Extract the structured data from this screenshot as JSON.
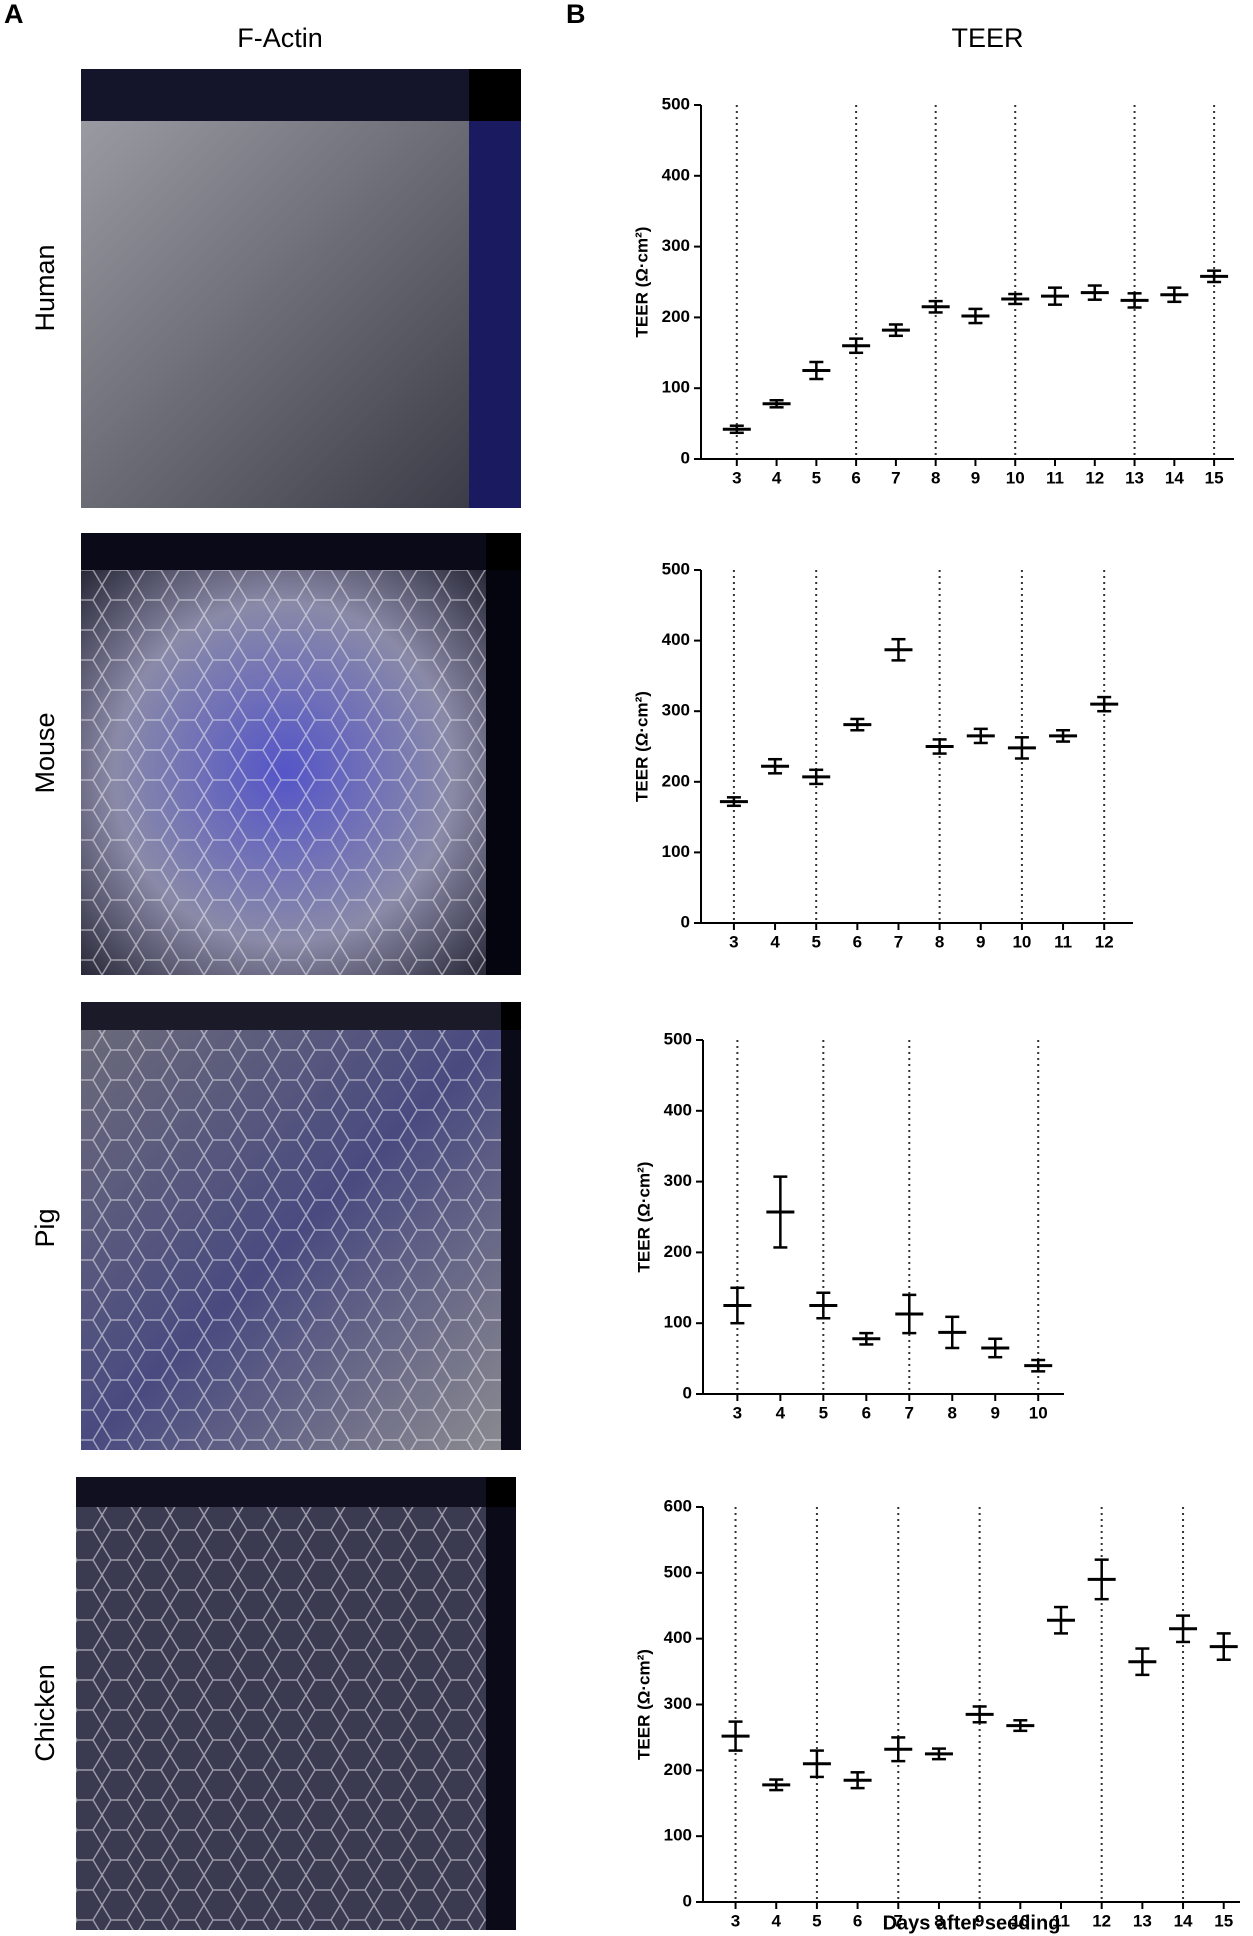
{
  "figure": {
    "panel_labels": [
      "A",
      "B"
    ],
    "image_title": "F-Actin",
    "species": [
      "Human",
      "Mouse",
      "Pig",
      "Chicken"
    ]
  },
  "chart_data": [
    {
      "type": "errorbar",
      "title": "TEER",
      "y_label": "TEER (Ω·cm²)",
      "x": [
        3,
        4,
        5,
        6,
        7,
        8,
        9,
        10,
        11,
        12,
        13,
        14,
        15
      ],
      "xlim": [
        2.1,
        15.5
      ],
      "values": [
        42,
        78,
        125,
        160,
        182,
        215,
        202,
        226,
        230,
        235,
        224,
        232,
        258
      ],
      "errors": [
        5,
        5,
        12,
        10,
        8,
        8,
        10,
        7,
        12,
        10,
        10,
        10,
        8
      ],
      "ylim": [
        0,
        500
      ],
      "yticks": [
        0,
        100,
        200,
        300,
        400,
        500
      ],
      "dotted_days": [
        3,
        6,
        8,
        10,
        13,
        15
      ],
      "color": "#000000"
    },
    {
      "type": "errorbar",
      "y_label": "TEER (Ω·cm²)",
      "x": [
        3,
        4,
        5,
        6,
        7,
        8,
        9,
        10,
        11,
        12
      ],
      "xlim": [
        2.2,
        12.7
      ],
      "values": [
        172,
        222,
        207,
        281,
        387,
        250,
        265,
        248,
        265,
        310
      ],
      "errors": [
        6,
        10,
        10,
        8,
        15,
        10,
        10,
        15,
        8,
        10
      ],
      "ylim": [
        0,
        500
      ],
      "yticks": [
        0,
        100,
        200,
        300,
        400,
        500
      ],
      "dotted_days": [
        3,
        5,
        8,
        10,
        12
      ],
      "color": "#000000"
    },
    {
      "type": "errorbar",
      "y_label": "TEER (Ω·cm²)",
      "x": [
        3,
        4,
        5,
        6,
        7,
        8,
        9,
        10
      ],
      "xlim": [
        2.2,
        10.6
      ],
      "values": [
        125,
        257,
        125,
        78,
        113,
        87,
        65,
        40
      ],
      "errors": [
        25,
        50,
        18,
        8,
        27,
        22,
        13,
        8
      ],
      "ylim": [
        0,
        500
      ],
      "yticks": [
        0,
        100,
        200,
        300,
        400,
        500
      ],
      "dotted_days": [
        3,
        5,
        7,
        10
      ],
      "color": "#000000"
    },
    {
      "type": "errorbar",
      "y_label": "TEER (Ω·cm²)",
      "x_label": "Days after seeding",
      "x": [
        3,
        4,
        5,
        6,
        7,
        8,
        9,
        10,
        11,
        12,
        13,
        14,
        15
      ],
      "xlim": [
        2.2,
        15.4
      ],
      "values": [
        252,
        178,
        210,
        185,
        232,
        225,
        285,
        268,
        428,
        490,
        365,
        415,
        388
      ],
      "errors": [
        22,
        8,
        20,
        12,
        18,
        8,
        12,
        8,
        20,
        30,
        20,
        20,
        20
      ],
      "ylim": [
        0,
        600
      ],
      "yticks": [
        0,
        100,
        200,
        300,
        400,
        500,
        600
      ],
      "dotted_days": [
        3,
        5,
        7,
        9,
        12,
        14
      ],
      "color": "#000000"
    }
  ]
}
